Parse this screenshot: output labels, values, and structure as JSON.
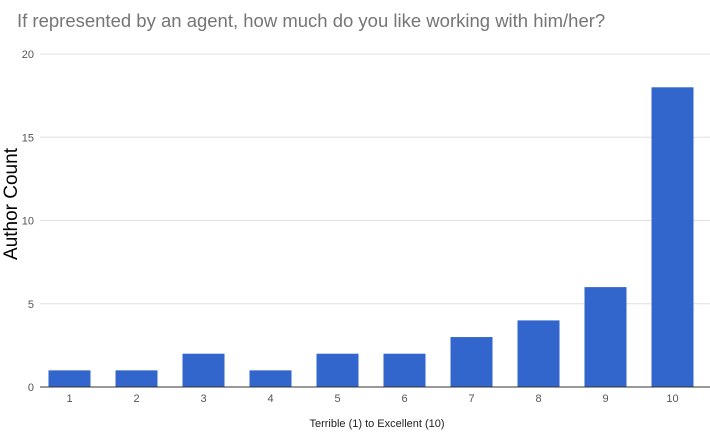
{
  "chart_data": {
    "type": "bar",
    "title": "If represented by an agent, how much do you like working with him/her?",
    "xlabel": "Terrible (1) to Excellent (10)",
    "ylabel": "Author Count",
    "categories": [
      "1",
      "2",
      "3",
      "4",
      "5",
      "6",
      "7",
      "8",
      "9",
      "10"
    ],
    "values": [
      1,
      1,
      2,
      1,
      2,
      2,
      3,
      4,
      6,
      18
    ],
    "ylim": [
      0,
      20
    ],
    "yticks": [
      "0",
      "5",
      "10",
      "15",
      "20"
    ],
    "grid": true,
    "legend": "none",
    "bar_color": "#3366cc",
    "grid_color": "#e0e0e0",
    "axis_color": "#333333"
  }
}
